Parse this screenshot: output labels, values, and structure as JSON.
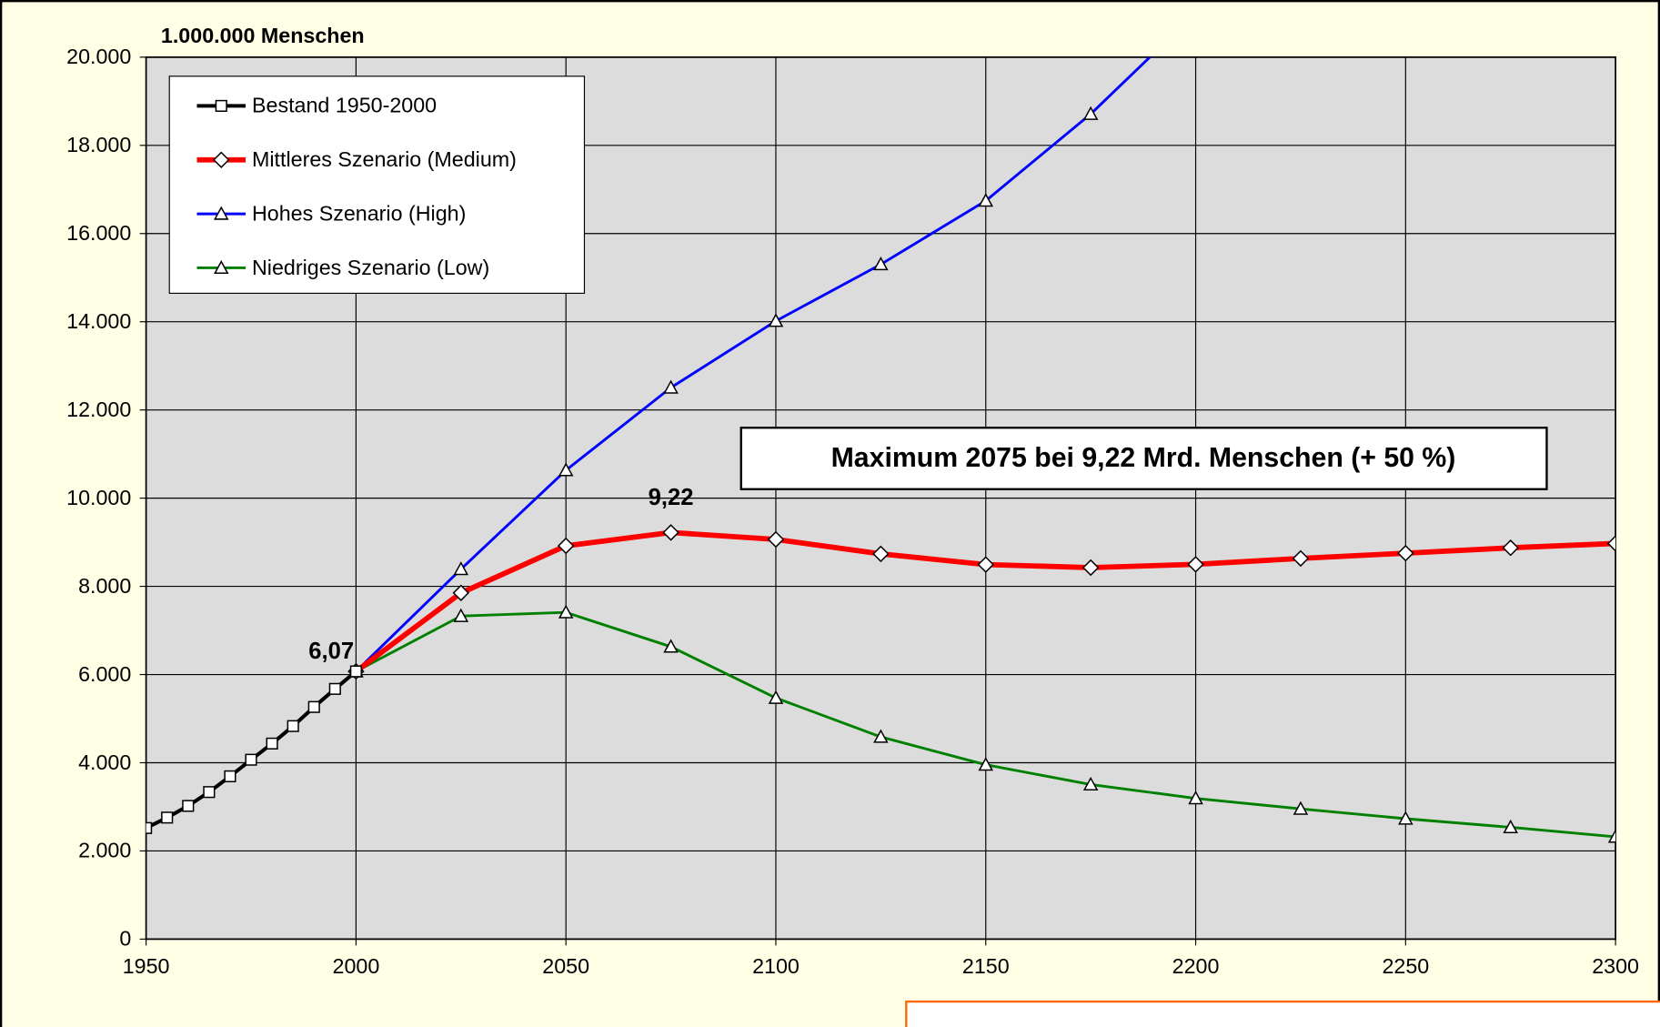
{
  "chart_data": {
    "type": "line",
    "ylabel": "1.000.000 Menschen",
    "xlim": [
      1950,
      2300
    ],
    "ylim": [
      0,
      20000
    ],
    "xticks": [
      1950,
      2000,
      2050,
      2100,
      2150,
      2200,
      2250,
      2300
    ],
    "yticks": [
      0,
      {
        "value": 2000,
        "label": "2.000"
      },
      {
        "value": 4000,
        "label": "4.000"
      },
      {
        "value": 6000,
        "label": "6.000"
      },
      {
        "value": 8000,
        "label": "8.000"
      },
      {
        "value": 10000,
        "label": "10.000"
      },
      {
        "value": 12000,
        "label": "12.000"
      },
      {
        "value": 14000,
        "label": "14.000"
      },
      {
        "value": 16000,
        "label": "16.000"
      },
      {
        "value": 18000,
        "label": "18.000"
      },
      {
        "value": 20000,
        "label": "20.000"
      }
    ],
    "grid": true,
    "legend": "top-left",
    "series": [
      {
        "name": "Bestand 1950-2000",
        "color": "#000000",
        "marker": "square",
        "x": [
          1950,
          1955,
          1960,
          1965,
          1970,
          1975,
          1980,
          1985,
          1990,
          1995,
          2000
        ],
        "values": [
          2519,
          2756,
          3021,
          3335,
          3692,
          4068,
          4435,
          4831,
          5264,
          5674,
          6071
        ]
      },
      {
        "name": "Mittleres Szenario (Medium)",
        "color": "#ff0000",
        "marker": "diamond",
        "x": [
          2000,
          2025,
          2050,
          2075,
          2100,
          2125,
          2150,
          2175,
          2200,
          2225,
          2250,
          2275,
          2300
        ],
        "values": [
          6071,
          7851,
          8919,
          9221,
          9064,
          8736,
          8494,
          8425,
          8499,
          8633,
          8752,
          8874,
          8972
        ]
      },
      {
        "name": "Hohes Szenario (High)",
        "color": "#0000ff",
        "marker": "triangle",
        "x": [
          2000,
          2025,
          2050,
          2075,
          2100,
          2125,
          2150,
          2175,
          2200
        ],
        "values": [
          6071,
          8390,
          10633,
          12506,
          14018,
          15302,
          16744,
          18712,
          21000
        ]
      },
      {
        "name": "Niedriges Szenario (Low)",
        "color": "#008000",
        "marker": "triangle",
        "x": [
          2000,
          2025,
          2050,
          2075,
          2100,
          2125,
          2150,
          2175,
          2200,
          2225,
          2250,
          2275,
          2300
        ],
        "values": [
          6071,
          7326,
          7409,
          6631,
          5469,
          4586,
          3954,
          3506,
          3192,
          2954,
          2731,
          2536,
          2320
        ]
      }
    ],
    "annotations": [
      "6,07",
      "9,22",
      "Maximum 2075 bei 9,22 Mrd. Menschen (+ 50 %)"
    ]
  }
}
